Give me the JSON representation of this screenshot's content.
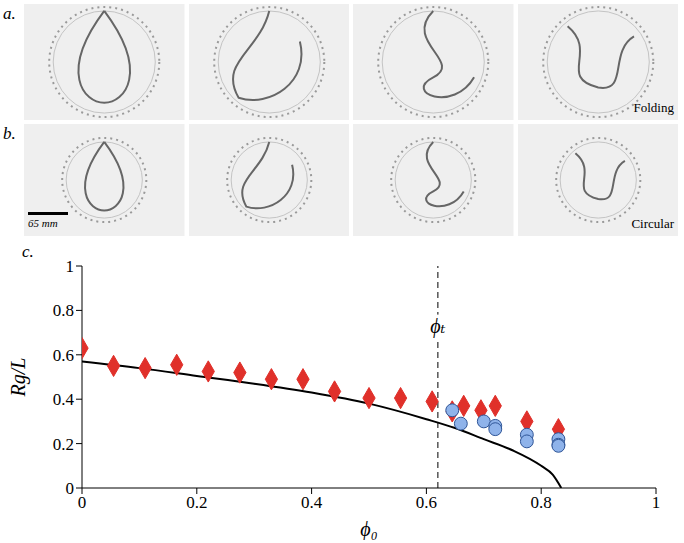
{
  "figure": {
    "panels": [
      {
        "letter": "a.",
        "caption": "Folding"
      },
      {
        "letter": "b.",
        "caption": "Circular",
        "scale_bar": "65 mm"
      },
      {
        "letter": "c."
      }
    ]
  },
  "chart_data": {
    "type": "scatter",
    "x_label": "ϕ₀",
    "y_label": "Rg/L",
    "xlim": [
      0,
      1
    ],
    "ylim": [
      0,
      1
    ],
    "xticks": [
      0,
      0.2,
      0.4,
      0.6,
      0.8,
      1
    ],
    "yticks": [
      0,
      0.2,
      0.4,
      0.6,
      0.8,
      1
    ],
    "grid": false,
    "vline": {
      "x": 0.62,
      "label": "ϕₜ",
      "line_style": "dashed"
    },
    "series": [
      {
        "type": "scatter",
        "marker": "diamond",
        "color": "#e0302a",
        "x": [
          0,
          0.055,
          0.11,
          0.165,
          0.22,
          0.275,
          0.33,
          0.385,
          0.44,
          0.5,
          0.555,
          0.61,
          0.645,
          0.665,
          0.695,
          0.72,
          0.775,
          0.83
        ],
        "values": [
          0.63,
          0.55,
          0.54,
          0.555,
          0.525,
          0.52,
          0.49,
          0.49,
          0.435,
          0.405,
          0.405,
          0.39,
          0.345,
          0.37,
          0.35,
          0.37,
          0.3,
          0.265
        ]
      },
      {
        "type": "scatter",
        "marker": "circle",
        "color": "#8fb3ea",
        "x": [
          0.645,
          0.66,
          0.7,
          0.72,
          0.72,
          0.775,
          0.775,
          0.83,
          0.83,
          0.83
        ],
        "values": [
          0.35,
          0.29,
          0.3,
          0.28,
          0.265,
          0.24,
          0.21,
          0.22,
          0.195,
          0.19
        ]
      },
      {
        "type": "line",
        "line_style": "solid",
        "color": "#000000",
        "x": [
          0,
          0.1,
          0.2,
          0.3,
          0.4,
          0.5,
          0.6,
          0.65,
          0.7,
          0.75,
          0.8,
          0.82,
          0.835
        ],
        "values": [
          0.57,
          0.54,
          0.505,
          0.47,
          0.43,
          0.38,
          0.31,
          0.27,
          0.22,
          0.17,
          0.1,
          0.06,
          0
        ]
      }
    ]
  }
}
